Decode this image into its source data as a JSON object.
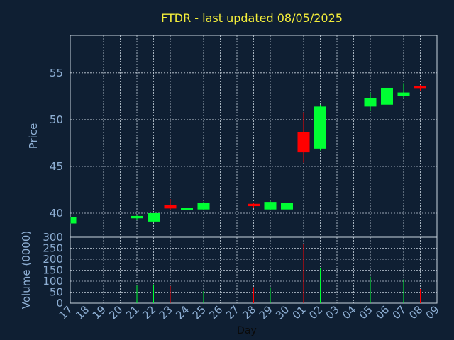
{
  "chart_data": {
    "title": "FTDR - last updated 08/05/2025",
    "xlabel": "Day",
    "colors": {
      "background": "#0f1f33",
      "up": "#00ff33",
      "down": "#ff0000",
      "title": "#f5ef3a",
      "axis": "#8eafd4"
    },
    "x_ticks": [
      "17",
      "18",
      "19",
      "20",
      "21",
      "22",
      "23",
      "24",
      "25",
      "26",
      "27",
      "28",
      "29",
      "30",
      "01",
      "02",
      "03",
      "04",
      "05",
      "06",
      "07",
      "08",
      "09"
    ],
    "price_panel": {
      "type": "candlestick",
      "ylabel": "Price",
      "ylim": [
        37.5,
        59
      ],
      "y_ticks": [
        40,
        45,
        50,
        55
      ],
      "grid": true,
      "candles": [
        {
          "x": "17",
          "open": 38.9,
          "close": 39.6,
          "high": 39.6,
          "low": 38.9
        },
        {
          "x": "21",
          "open": 39.45,
          "close": 39.7,
          "high": 39.8,
          "low": 39.3
        },
        {
          "x": "22",
          "open": 39.1,
          "close": 40.0,
          "high": 40.0,
          "low": 39.0
        },
        {
          "x": "23",
          "open": 40.9,
          "close": 40.5,
          "high": 41.5,
          "low": 40.4
        },
        {
          "x": "24",
          "open": 40.45,
          "close": 40.6,
          "high": 40.7,
          "low": 40.3
        },
        {
          "x": "25",
          "open": 40.4,
          "close": 41.1,
          "high": 41.2,
          "low": 40.3
        },
        {
          "x": "28",
          "open": 41.0,
          "close": 40.75,
          "high": 41.1,
          "low": 40.6
        },
        {
          "x": "29",
          "open": 40.4,
          "close": 41.2,
          "high": 41.3,
          "low": 40.3
        },
        {
          "x": "30",
          "open": 40.4,
          "close": 41.1,
          "high": 41.3,
          "low": 40.3
        },
        {
          "x": "01",
          "open": 48.7,
          "close": 46.5,
          "high": 50.8,
          "low": 45.4
        },
        {
          "x": "02",
          "open": 46.9,
          "close": 51.4,
          "high": 51.6,
          "low": 46.7
        },
        {
          "x": "05",
          "open": 51.4,
          "close": 52.3,
          "high": 52.9,
          "low": 50.9
        },
        {
          "x": "06",
          "open": 51.6,
          "close": 53.4,
          "high": 53.5,
          "low": 51.5
        },
        {
          "x": "07",
          "open": 52.5,
          "close": 52.9,
          "high": 53.9,
          "low": 52.3
        },
        {
          "x": "08",
          "open": 53.6,
          "close": 53.4,
          "high": 53.7,
          "low": 53.1
        }
      ]
    },
    "volume_panel": {
      "type": "bar",
      "ylabel": "Volume (0000)",
      "ylim": [
        0,
        300
      ],
      "y_ticks": [
        0,
        50,
        100,
        150,
        200,
        250,
        300
      ],
      "grid": true,
      "bars": [
        {
          "x": "17",
          "value": 0,
          "dir": "up"
        },
        {
          "x": "21",
          "value": 80,
          "dir": "up"
        },
        {
          "x": "22",
          "value": 85,
          "dir": "up"
        },
        {
          "x": "23",
          "value": 78,
          "dir": "down"
        },
        {
          "x": "24",
          "value": 70,
          "dir": "up"
        },
        {
          "x": "25",
          "value": 55,
          "dir": "up"
        },
        {
          "x": "28",
          "value": 72,
          "dir": "down"
        },
        {
          "x": "29",
          "value": 72,
          "dir": "up"
        },
        {
          "x": "30",
          "value": 105,
          "dir": "up"
        },
        {
          "x": "01",
          "value": 270,
          "dir": "down"
        },
        {
          "x": "02",
          "value": 158,
          "dir": "up"
        },
        {
          "x": "05",
          "value": 120,
          "dir": "up"
        },
        {
          "x": "06",
          "value": 88,
          "dir": "up"
        },
        {
          "x": "07",
          "value": 108,
          "dir": "up"
        },
        {
          "x": "08",
          "value": 65,
          "dir": "down"
        }
      ]
    }
  }
}
